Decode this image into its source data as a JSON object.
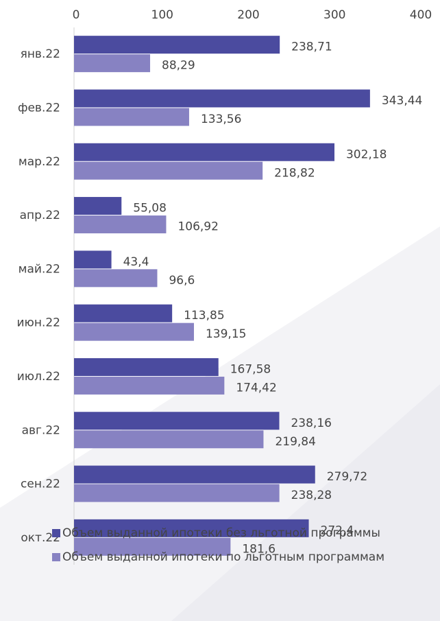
{
  "chart_data": {
    "type": "barh",
    "categories": [
      "янв.22",
      "фев.22",
      "мар.22",
      "апр.22",
      "май.22",
      "июн.22",
      "июл.22",
      "авг.22",
      "сен.22",
      "окт.22"
    ],
    "series": [
      {
        "name": "Объем выданной ипотеки без льготной программы",
        "color": "#4b4b9f",
        "values": [
          238.71,
          343.44,
          302.18,
          55.08,
          43.4,
          113.85,
          167.58,
          238.16,
          279.72,
          272.4
        ],
        "value_labels": [
          "238,71",
          "343,44",
          "302,18",
          "55,08",
          "43,4",
          "113,85",
          "167,58",
          "238,16",
          "279,72",
          "272,4"
        ]
      },
      {
        "name": "Объем выданной ипотеки по льготным программам",
        "color": "#8782c2",
        "values": [
          88.29,
          133.56,
          218.82,
          106.92,
          96.6,
          139.15,
          174.42,
          219.84,
          238.28,
          181.6
        ],
        "value_labels": [
          "88,29",
          "133,56",
          "218,82",
          "106,92",
          "96,6",
          "139,15",
          "174,42",
          "219,84",
          "238,28",
          "181,6"
        ]
      }
    ],
    "xlim": [
      0,
      400
    ],
    "xticks": [
      0,
      100,
      200,
      300,
      400
    ],
    "legend": "bottom"
  }
}
